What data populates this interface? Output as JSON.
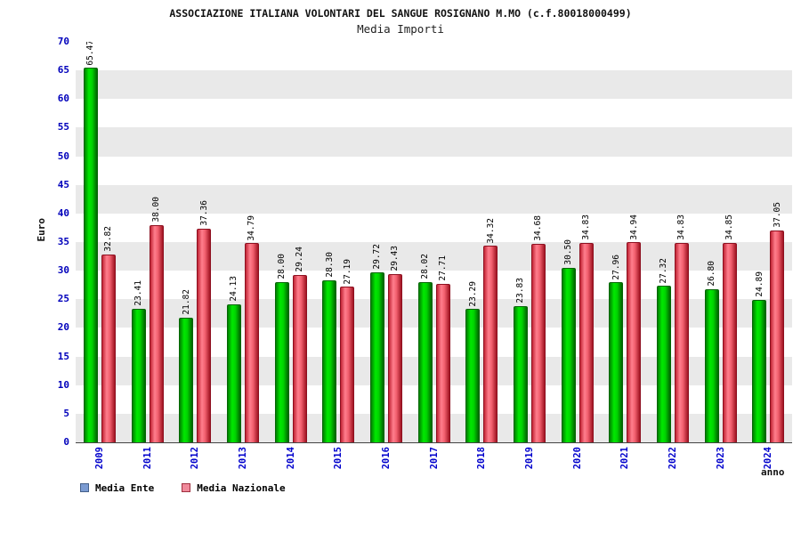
{
  "chart_data": {
    "type": "bar",
    "title": "ASSOCIAZIONE ITALIANA VOLONTARI DEL SANGUE ROSIGNANO M.MO (c.f.80018000499)",
    "subtitle": "Media Importi",
    "ylabel": "Euro",
    "xlabel": "anno",
    "ylim": [
      0,
      70
    ],
    "ytick_step": 5,
    "grid_bands": true,
    "legend_position": "bottom-left",
    "categories": [
      "2009",
      "2011",
      "2012",
      "2013",
      "2014",
      "2015",
      "2016",
      "2017",
      "2018",
      "2019",
      "2020",
      "2021",
      "2022",
      "2023",
      "2024"
    ],
    "series": [
      {
        "name": "Media Ente",
        "bar_color": "#00d400",
        "legend_color": "#7b9bd2",
        "values": [
          65.47,
          23.41,
          21.82,
          24.13,
          28.0,
          28.3,
          29.72,
          28.02,
          23.29,
          23.83,
          30.5,
          27.96,
          27.32,
          26.8,
          24.89
        ]
      },
      {
        "name": "Media Nazionale",
        "bar_color": "#f2606f",
        "legend_color": "#f08a9b",
        "values": [
          32.82,
          38.0,
          37.36,
          34.79,
          29.24,
          27.19,
          29.43,
          27.71,
          34.32,
          34.68,
          34.83,
          34.94,
          34.83,
          34.85,
          37.05
        ]
      }
    ],
    "colors": {
      "axis_tick_text": "#0000bb",
      "band_gray": "#e9e9e9",
      "band_white": "#ffffff"
    }
  }
}
